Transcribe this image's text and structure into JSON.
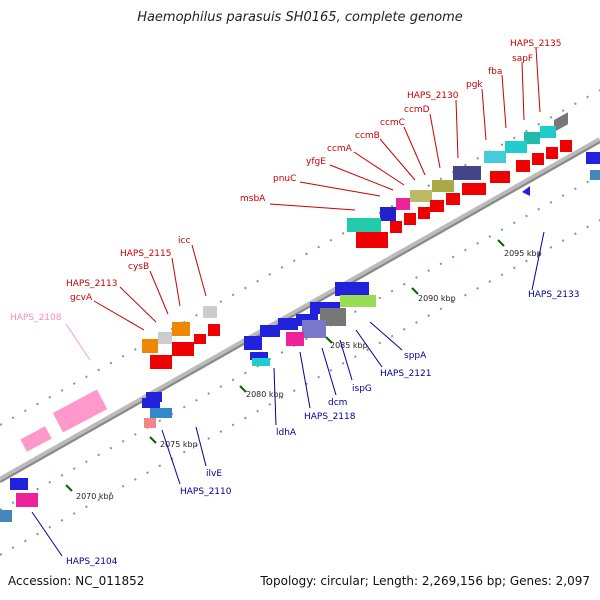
{
  "header": {
    "title": "Haemophilus parasuis SH0165, complete genome"
  },
  "footer": {
    "accession": "Accession: NC_011852",
    "summary": "Topology: circular; Length: 2,269,156 bp; Genes: 2,097"
  },
  "colors": {
    "top_labels": "#cc0000",
    "bottom_labels": "#000099",
    "pink_labels": "#ff88bb",
    "axis": "#999999",
    "ticks": "#006600"
  },
  "kbp_ticks": [
    {
      "label": "2070 kbp"
    },
    {
      "label": "2075 kbp"
    },
    {
      "label": "2080 kbp"
    },
    {
      "label": "2085 kbp"
    },
    {
      "label": "2090 kbp"
    },
    {
      "label": "2095 kbp"
    }
  ],
  "top_genes": [
    {
      "name": "HAPS_2135"
    },
    {
      "name": "sapF"
    },
    {
      "name": "fba"
    },
    {
      "name": "pgk"
    },
    {
      "name": "HAPS_2130"
    },
    {
      "name": "ccmD"
    },
    {
      "name": "ccmC"
    },
    {
      "name": "ccmB"
    },
    {
      "name": "ccmA"
    },
    {
      "name": "yfgE"
    },
    {
      "name": "pnuC"
    },
    {
      "name": "msbA"
    },
    {
      "name": "icc"
    },
    {
      "name": "HAPS_2115"
    },
    {
      "name": "cysB"
    },
    {
      "name": "HAPS_2113"
    },
    {
      "name": "gcvA"
    }
  ],
  "pink_genes": [
    {
      "name": "HAPS_2108"
    }
  ],
  "bottom_genes": [
    {
      "name": "HAPS_2133"
    },
    {
      "name": "sppA"
    },
    {
      "name": "HAPS_2121"
    },
    {
      "name": "ispG"
    },
    {
      "name": "dcm"
    },
    {
      "name": "HAPS_2118"
    },
    {
      "name": "ldhA"
    },
    {
      "name": "ilvE"
    },
    {
      "name": "HAPS_2110"
    },
    {
      "name": "HAPS_2104"
    }
  ]
}
